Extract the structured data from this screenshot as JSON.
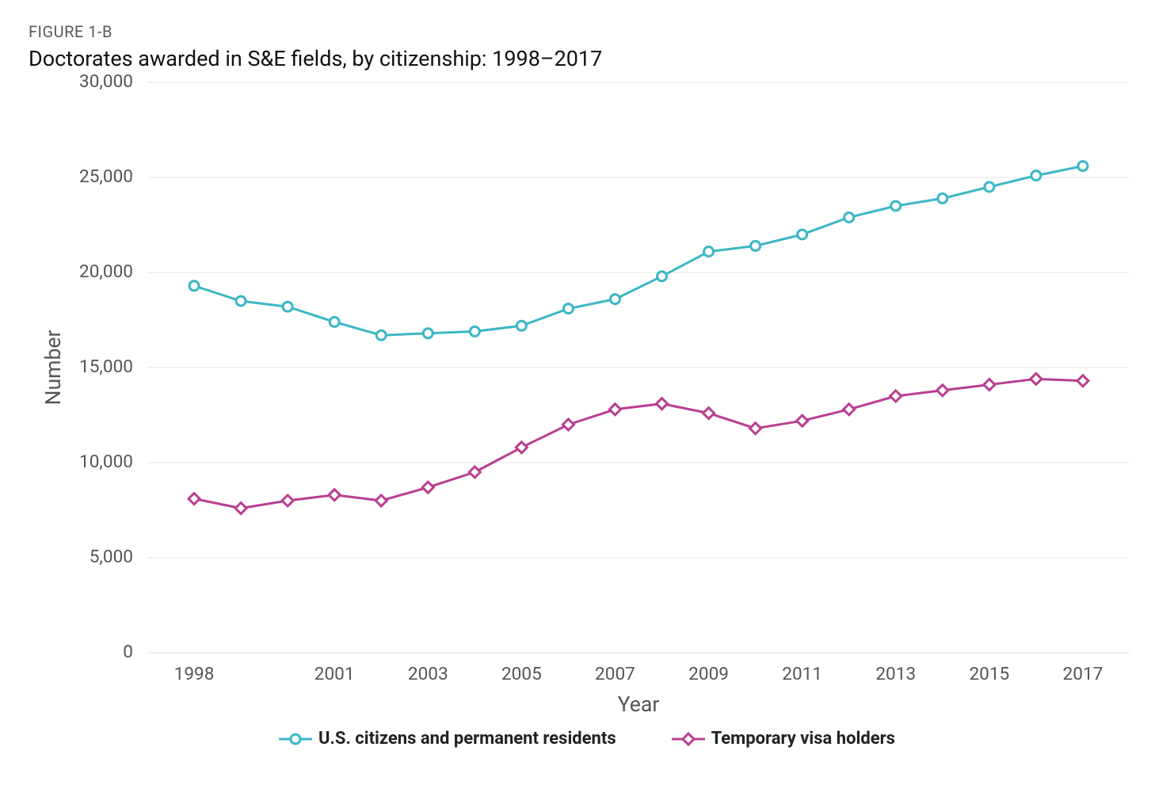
{
  "figure_label": "FIGURE 1-B",
  "title": "Doctorates awarded in S&E fields, by citizenship: 1998–2017",
  "chart": {
    "type": "line",
    "background_color": "#ffffff",
    "grid_color": "#e5e5e5",
    "axis_line_color": "#cccccc",
    "tick_font_color": "#555555",
    "tick_font_size_pt": 17,
    "axis_label_font_size_pt": 20,
    "axis_label_color": "#555555",
    "x": {
      "label": "Year",
      "min": 1997,
      "max": 2018,
      "tick_values": [
        1998,
        2001,
        2003,
        2005,
        2007,
        2009,
        2011,
        2013,
        2015,
        2017
      ],
      "tick_labels": [
        "1998",
        "2001",
        "2003",
        "2005",
        "2007",
        "2009",
        "2011",
        "2013",
        "2015",
        "2017"
      ]
    },
    "y": {
      "label": "Number",
      "min": 0,
      "max": 30000,
      "tick_values": [
        0,
        5000,
        10000,
        15000,
        20000,
        25000,
        30000
      ],
      "tick_labels": [
        "0",
        "5,000",
        "10,000",
        "15,000",
        "20,000",
        "25,000",
        "30,000"
      ]
    },
    "x_values": [
      1998,
      1999,
      2000,
      2001,
      2002,
      2003,
      2004,
      2005,
      2006,
      2007,
      2008,
      2009,
      2010,
      2011,
      2012,
      2013,
      2014,
      2015,
      2016,
      2017
    ],
    "series": [
      {
        "name": "U.S. citizens and permanent residents",
        "color": "#3cb7c5",
        "line_width": 3,
        "marker": "circle",
        "marker_size": 6,
        "marker_fill": "#ffffff",
        "marker_stroke_width": 3,
        "values": [
          19300,
          18500,
          18200,
          17400,
          16700,
          16800,
          16900,
          17200,
          18100,
          18600,
          19800,
          21100,
          21400,
          22000,
          22900,
          23500,
          23900,
          24500,
          25100,
          25600
        ]
      },
      {
        "name": "Temporary visa holders",
        "color": "#b93e92",
        "line_width": 3,
        "marker": "diamond",
        "marker_size": 6,
        "marker_fill": "#ffffff",
        "marker_stroke_width": 3,
        "values": [
          8100,
          7600,
          8000,
          8300,
          8000,
          8700,
          9500,
          10800,
          12000,
          12800,
          13100,
          12600,
          11800,
          12200,
          12800,
          13500,
          13800,
          14100,
          14400,
          14300
        ]
      }
    ],
    "legend_font_size_pt": 16,
    "legend_font_weight": 700
  }
}
